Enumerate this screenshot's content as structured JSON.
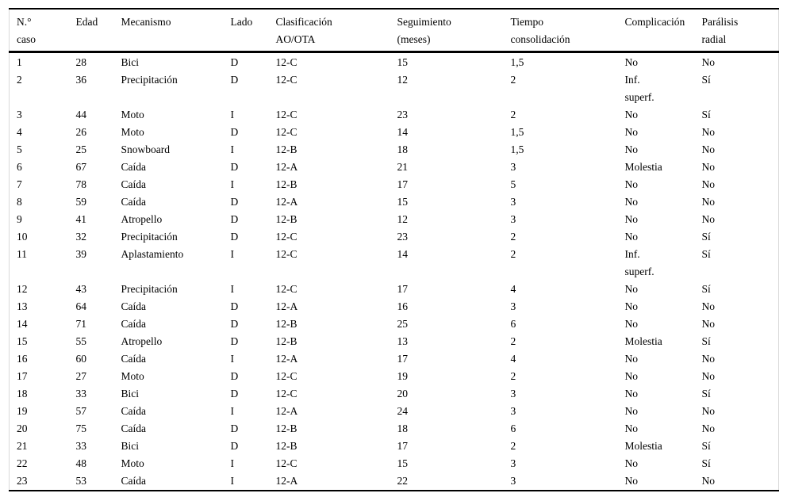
{
  "colors": {
    "background": "#ffffff",
    "text": "#000000",
    "rule": "#000000",
    "edge_line": "#d8d8d8"
  },
  "table": {
    "column_keys": [
      "caso",
      "edad",
      "mecanismo",
      "lado",
      "clasificacion-ao-ota",
      "seguimiento-meses",
      "tiempo-consolidacion",
      "complicacion",
      "paralisis-radial"
    ],
    "columns": [
      "N.°\ncaso",
      "Edad",
      "Mecanismo",
      "Lado",
      "Clasificación\nAO/OTA",
      "Seguimiento\n(meses)",
      "Tiempo\nconsolidación",
      "Complicación",
      "Parálisis\nradial"
    ],
    "rows": [
      [
        "1",
        "28",
        "Bici",
        "D",
        "12-C",
        "15",
        "1,5",
        "No",
        "No"
      ],
      [
        "2",
        "36",
        "Precipitación",
        "D",
        "12-C",
        "12",
        "2",
        "Inf.\nsuperf.",
        "Sí"
      ],
      [
        "3",
        "44",
        "Moto",
        "I",
        "12-C",
        "23",
        "2",
        "No",
        "Sí"
      ],
      [
        "4",
        "26",
        "Moto",
        "D",
        "12-C",
        "14",
        "1,5",
        "No",
        "No"
      ],
      [
        "5",
        "25",
        "Snowboard",
        "I",
        "12-B",
        "18",
        "1,5",
        "No",
        "No"
      ],
      [
        "6",
        "67",
        "Caída",
        "D",
        "12-A",
        "21",
        "3",
        "Molestia",
        "No"
      ],
      [
        "7",
        "78",
        "Caída",
        "I",
        "12-B",
        "17",
        "5",
        "No",
        "No"
      ],
      [
        "8",
        "59",
        "Caída",
        "D",
        "12-A",
        "15",
        "3",
        "No",
        "No"
      ],
      [
        "9",
        "41",
        "Atropello",
        "D",
        "12-B",
        "12",
        "3",
        "No",
        "No"
      ],
      [
        "10",
        "32",
        "Precipitación",
        "D",
        "12-C",
        "23",
        "2",
        "No",
        "Sí"
      ],
      [
        "11",
        "39",
        "Aplastamiento",
        "I",
        "12-C",
        "14",
        "2",
        "Inf.\nsuperf.",
        "Sí"
      ],
      [
        "12",
        "43",
        "Precipitación",
        "I",
        "12-C",
        "17",
        "4",
        "No",
        "Sí"
      ],
      [
        "13",
        "64",
        "Caída",
        "D",
        "12-A",
        "16",
        "3",
        "No",
        "No"
      ],
      [
        "14",
        "71",
        "Caída",
        "D",
        "12-B",
        "25",
        "6",
        "No",
        "No"
      ],
      [
        "15",
        "55",
        "Atropello",
        "D",
        "12-B",
        "13",
        "2",
        "Molestia",
        "Sí"
      ],
      [
        "16",
        "60",
        "Caída",
        "I",
        "12-A",
        "17",
        "4",
        "No",
        "No"
      ],
      [
        "17",
        "27",
        "Moto",
        "D",
        "12-C",
        "19",
        "2",
        "No",
        "No"
      ],
      [
        "18",
        "33",
        "Bici",
        "D",
        "12-C",
        "20",
        "3",
        "No",
        "Sí"
      ],
      [
        "19",
        "57",
        "Caída",
        "I",
        "12-A",
        "24",
        "3",
        "No",
        "No"
      ],
      [
        "20",
        "75",
        "Caída",
        "D",
        "12-B",
        "18",
        "6",
        "No",
        "No"
      ],
      [
        "21",
        "33",
        "Bici",
        "D",
        "12-B",
        "17",
        "2",
        "Molestia",
        "Sí"
      ],
      [
        "22",
        "48",
        "Moto",
        "I",
        "12-C",
        "15",
        "3",
        "No",
        "Sí"
      ],
      [
        "23",
        "53",
        "Caída",
        "I",
        "12-A",
        "22",
        "3",
        "No",
        "No"
      ]
    ]
  }
}
